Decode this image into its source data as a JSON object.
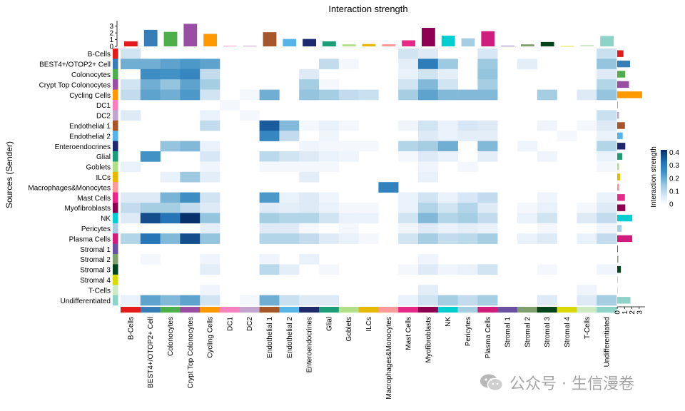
{
  "chart_data": {
    "type": "heatmap",
    "title": "Interaction strength",
    "ylabel": "Sources (Sender)",
    "colorbar": {
      "label": "Interaction strength",
      "ticks": [
        0,
        0.1,
        0.2,
        0.3,
        0.4
      ],
      "range": [
        0,
        0.42
      ],
      "low_color": "#ffffff",
      "high_color": "#08306b"
    },
    "top_bar_axis": {
      "ticks": [
        0,
        1,
        2,
        3
      ],
      "max": 3.6
    },
    "right_bar_axis": {
      "ticks": [
        0,
        1,
        2,
        3
      ],
      "max": 3.6
    },
    "categories": [
      "B-Cells",
      "BEST4+/OTOP2+ Cell",
      "Colonocytes",
      "Crypt Top Colonocytes",
      "Cycling Cells",
      "DC1",
      "DC2",
      "Endothelial 1",
      "Endothelial 2",
      "Enteroendocrines",
      "Glial",
      "Goblets",
      "ILCs",
      "Macrophages&Monocytes",
      "Mast Cells",
      "Myofibroblasts",
      "NK",
      "Pericytes",
      "Plasma Cells",
      "Stromal 1",
      "Stromal 2",
      "Stromal 3",
      "Stromal 4",
      "T-Cells",
      "Undifferentiated"
    ],
    "category_colors": [
      "#e41a1c",
      "#377eb8",
      "#4daf4a",
      "#984ea3",
      "#ff9900",
      "#f781bf",
      "#c2a5cf",
      "#a65628",
      "#56b4e9",
      "#1f2a6e",
      "#1b9e77",
      "#b2df8a",
      "#e6b800",
      "#fb9a99",
      "#e7298a",
      "#8e0152",
      "#00ced1",
      "#a6cee3",
      "#d01c7b",
      "#6a51a3",
      "#7f9f6f",
      "#00441b",
      "#d9d900",
      "#ccebc5",
      "#8dd3c7"
    ],
    "incoming_totals": [
      0.75,
      2.45,
      2.15,
      3.35,
      1.85,
      0.08,
      0.1,
      2.1,
      1.1,
      1.1,
      0.75,
      0.3,
      0.35,
      0.32,
      0.9,
      2.75,
      1.6,
      1.2,
      2.25,
      0.08,
      0.3,
      0.65,
      0.05,
      0.22,
      1.55
    ],
    "outgoing_totals": [
      0.85,
      1.75,
      1.1,
      1.6,
      3.4,
      0.1,
      0.25,
      1.05,
      0.75,
      1.1,
      0.7,
      0.25,
      0.4,
      0.3,
      1.05,
      1.1,
      2.05,
      0.6,
      2.05,
      0.1,
      0.15,
      0.5,
      0.05,
      0.1,
      1.8
    ],
    "values": [
      [
        0.08,
        0,
        0,
        0,
        0,
        0,
        0,
        0,
        0,
        0,
        0,
        0,
        0,
        0,
        0.08,
        0.06,
        0,
        0,
        0.07,
        0,
        0,
        0,
        0,
        0,
        0.09
      ],
      [
        0.2,
        0.2,
        0.22,
        0.24,
        0.22,
        0,
        0,
        0,
        0,
        0,
        0.1,
        0.02,
        0,
        0,
        0.05,
        0.3,
        0.15,
        0,
        0.15,
        0,
        0.05,
        0,
        0,
        0,
        0.16
      ],
      [
        0,
        0.26,
        0.25,
        0.28,
        0.1,
        0,
        0,
        0,
        0,
        0.06,
        0,
        0,
        0,
        0,
        0.04,
        0.08,
        0.05,
        0,
        0.16,
        0,
        0,
        0,
        0,
        0,
        0.06
      ],
      [
        0.08,
        0.2,
        0.16,
        0.22,
        0.14,
        0,
        0,
        0,
        0,
        0.14,
        0.02,
        0,
        0,
        0,
        0.08,
        0.18,
        0.08,
        0,
        0.14,
        0,
        0,
        0,
        0,
        0,
        0.12
      ],
      [
        0.1,
        0.22,
        0.2,
        0.24,
        0.08,
        0,
        0.02,
        0.2,
        0,
        0.16,
        0.14,
        0.1,
        0.09,
        0,
        0.14,
        0.22,
        0.18,
        0.18,
        0.18,
        0,
        0,
        0.14,
        0,
        0.06,
        0.16
      ],
      [
        0,
        0,
        0,
        0,
        0,
        0.02,
        0,
        0,
        0,
        0,
        0,
        0,
        0,
        0,
        0,
        0,
        0,
        0,
        0,
        0,
        0,
        0,
        0,
        0,
        0
      ],
      [
        0.06,
        0,
        0,
        0,
        0.04,
        0,
        0.02,
        0,
        0,
        0,
        0,
        0,
        0,
        0,
        0,
        0,
        0,
        0,
        0,
        0,
        0,
        0,
        0,
        0,
        0.09
      ],
      [
        0,
        0,
        0,
        0,
        0.1,
        0,
        0,
        0.36,
        0.18,
        0.02,
        0.04,
        0.02,
        0,
        0,
        0.03,
        0.08,
        0.04,
        0.07,
        0.06,
        0,
        0,
        0.03,
        0,
        0.02,
        0.06
      ],
      [
        0,
        0,
        0,
        0,
        0,
        0,
        0,
        0.28,
        0.1,
        0,
        0.03,
        0,
        0,
        0,
        0,
        0.06,
        0.04,
        0.05,
        0.05,
        0,
        0,
        0,
        0.02,
        0,
        0.04
      ],
      [
        0,
        0,
        0.16,
        0.18,
        0.04,
        0,
        0,
        0,
        0,
        0.03,
        0.02,
        0.02,
        0.02,
        0,
        0.12,
        0.14,
        0.2,
        0,
        0.18,
        0,
        0.03,
        0,
        0,
        0,
        0.12
      ],
      [
        0,
        0.25,
        0,
        0,
        0.07,
        0,
        0,
        0.11,
        0.08,
        0.06,
        0.04,
        0.03,
        0,
        0,
        0.02,
        0.06,
        0.04,
        0,
        0.05,
        0,
        0,
        0.03,
        0,
        0,
        0.04
      ],
      [
        0.04,
        0,
        0,
        0,
        0.03,
        0,
        0,
        0.02,
        0.02,
        0.02,
        0.02,
        0,
        0,
        0,
        0,
        0.03,
        0,
        0.02,
        0,
        0,
        0,
        0,
        0,
        0,
        0.02
      ],
      [
        0,
        0,
        0.04,
        0.15,
        0.05,
        0,
        0,
        0,
        0,
        0.05,
        0,
        0,
        0,
        0,
        0,
        0.04,
        0,
        0,
        0,
        0,
        0,
        0,
        0,
        0,
        0
      ],
      [
        0,
        0,
        0,
        0,
        0,
        0,
        0,
        0,
        0,
        0,
        0,
        0,
        0,
        0.29,
        0,
        0,
        0,
        0,
        0,
        0,
        0,
        0,
        0,
        0,
        0
      ],
      [
        0.06,
        0.06,
        0.19,
        0.26,
        0.08,
        0,
        0,
        0.24,
        0.04,
        0.06,
        0.03,
        0,
        0,
        0,
        0.04,
        0.08,
        0.04,
        0.07,
        0.1,
        0,
        0,
        0.03,
        0,
        0,
        0.04
      ],
      [
        0.1,
        0.14,
        0.14,
        0.1,
        0.06,
        0,
        0,
        0.06,
        0.05,
        0.06,
        0.04,
        0.02,
        0.02,
        0,
        0.04,
        0.12,
        0.08,
        0.12,
        0.06,
        0,
        0.02,
        0.04,
        0,
        0.02,
        0.06
      ],
      [
        0.06,
        0.38,
        0.32,
        0.42,
        0.16,
        0,
        0,
        0.14,
        0.12,
        0.12,
        0.08,
        0.04,
        0.04,
        0,
        0.08,
        0.18,
        0.12,
        0.14,
        0.1,
        0,
        0.04,
        0.08,
        0,
        0.06,
        0.1
      ],
      [
        0,
        0,
        0,
        0,
        0.05,
        0,
        0,
        0.06,
        0.06,
        0.02,
        0,
        0.02,
        0,
        0,
        0.03,
        0.06,
        0.04,
        0.05,
        0.04,
        0,
        0,
        0.02,
        0,
        0,
        0.03
      ],
      [
        0.12,
        0.32,
        0.18,
        0.38,
        0.16,
        0,
        0,
        0.12,
        0.12,
        0.1,
        0.06,
        0.04,
        0.02,
        0,
        0.08,
        0.14,
        0.1,
        0.11,
        0.14,
        0,
        0.04,
        0.06,
        0,
        0.04,
        0.1
      ],
      [
        0,
        0,
        0,
        0,
        0,
        0,
        0,
        0,
        0,
        0,
        0,
        0,
        0,
        0,
        0,
        0,
        0,
        0,
        0,
        0,
        0,
        0,
        0,
        0,
        0
      ],
      [
        0,
        0.02,
        0,
        0,
        0.03,
        0,
        0,
        0.03,
        0,
        0.04,
        0,
        0,
        0,
        0,
        0,
        0.03,
        0,
        0,
        0,
        0,
        0,
        0,
        0,
        0,
        0
      ],
      [
        0,
        0,
        0,
        0,
        0.05,
        0,
        0,
        0.11,
        0.05,
        0,
        0.02,
        0,
        0,
        0,
        0.02,
        0.06,
        0.03,
        0.04,
        0.08,
        0,
        0,
        0.02,
        0,
        0,
        0.03
      ],
      [
        0,
        0,
        0,
        0,
        0,
        0,
        0,
        0,
        0,
        0,
        0,
        0,
        0,
        0,
        0,
        0,
        0,
        0,
        0,
        0,
        0,
        0,
        0,
        0,
        0
      ],
      [
        0,
        0,
        0,
        0,
        0.03,
        0,
        0,
        0,
        0,
        0,
        0,
        0,
        0,
        0,
        0,
        0.05,
        0,
        0,
        0,
        0,
        0,
        0,
        0,
        0.03,
        0
      ],
      [
        0.04,
        0.22,
        0.18,
        0.22,
        0.08,
        0,
        0.02,
        0.2,
        0.09,
        0.06,
        0.06,
        0,
        0,
        0,
        0.04,
        0.08,
        0.14,
        0.1,
        0.14,
        0,
        0,
        0.06,
        0,
        0.06,
        0.14
      ]
    ]
  },
  "watermark": {
    "text": "公众号 · 生信漫卷"
  }
}
